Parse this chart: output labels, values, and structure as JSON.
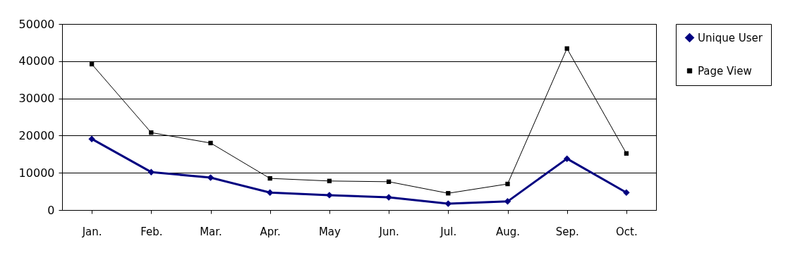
{
  "chart_data": {
    "type": "line",
    "categories": [
      "Jan.",
      "Feb.",
      "Mar.",
      "Apr.",
      "May",
      "Jun.",
      "Jul.",
      "Aug.",
      "Sep.",
      "Oct."
    ],
    "series": [
      {
        "name": "Unique User",
        "color": "#000080",
        "marker": "diamond",
        "values": [
          19100,
          10200,
          8700,
          4700,
          4000,
          3400,
          1700,
          2300,
          13800,
          4700
        ]
      },
      {
        "name": "Page View",
        "color": "#000000",
        "marker": "square",
        "values": [
          39200,
          20800,
          18000,
          8500,
          7800,
          7600,
          4500,
          7000,
          43400,
          15200
        ]
      }
    ],
    "ylim": [
      0,
      50000
    ],
    "yticks": [
      0,
      10000,
      20000,
      30000,
      40000,
      50000
    ],
    "grid": "y",
    "legend": "right",
    "line_style": "solid"
  }
}
